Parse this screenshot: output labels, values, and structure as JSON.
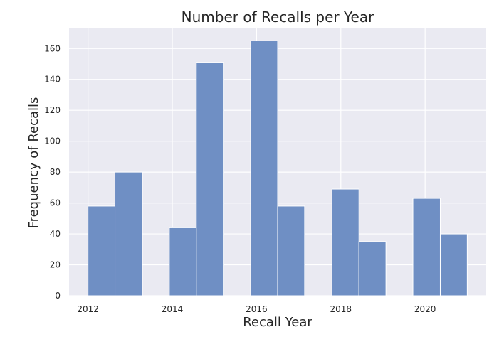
{
  "chart_data": {
    "type": "bar",
    "title": "Number of Recalls per Year",
    "xlabel": "Recall Year",
    "ylabel": "Frequency of Recalls",
    "bar_color": "#6f8fc4",
    "plot_background": "#eaeaf2",
    "grid": true,
    "xlim": [
      2011.55,
      2021.45
    ],
    "ylim": [
      0,
      173
    ],
    "xticks": [
      2012,
      2014,
      2016,
      2018,
      2020
    ],
    "xtick_labels": [
      "2012",
      "2014",
      "2016",
      "2018",
      "2020"
    ],
    "yticks": [
      0,
      20,
      40,
      60,
      80,
      100,
      120,
      140,
      160
    ],
    "ytick_labels": [
      "0",
      "20",
      "40",
      "60",
      "80",
      "100",
      "120",
      "140",
      "160"
    ],
    "bins": [
      {
        "start": 2012.0,
        "end": 2012.64,
        "value": 58
      },
      {
        "start": 2012.64,
        "end": 2013.29,
        "value": 80
      },
      {
        "start": 2013.29,
        "end": 2013.93,
        "value": 0
      },
      {
        "start": 2013.93,
        "end": 2014.57,
        "value": 44
      },
      {
        "start": 2014.57,
        "end": 2015.21,
        "value": 151
      },
      {
        "start": 2015.21,
        "end": 2015.86,
        "value": 0
      },
      {
        "start": 2015.86,
        "end": 2016.5,
        "value": 165
      },
      {
        "start": 2016.5,
        "end": 2017.14,
        "value": 58
      },
      {
        "start": 2017.14,
        "end": 2017.79,
        "value": 0
      },
      {
        "start": 2017.79,
        "end": 2018.43,
        "value": 69
      },
      {
        "start": 2018.43,
        "end": 2019.07,
        "value": 35
      },
      {
        "start": 2019.07,
        "end": 2019.71,
        "value": 0
      },
      {
        "start": 2019.71,
        "end": 2020.36,
        "value": 63
      },
      {
        "start": 2020.36,
        "end": 2021.0,
        "value": 40
      }
    ]
  }
}
